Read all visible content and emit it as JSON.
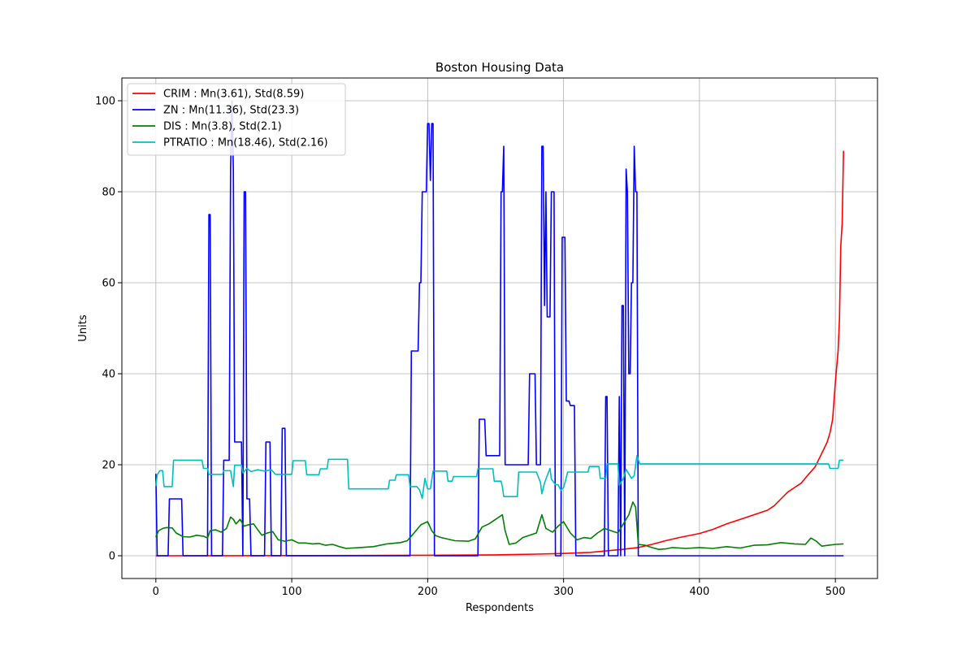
{
  "chart_data": {
    "type": "line",
    "title": "Boston Housing Data",
    "xlabel": "Respondents",
    "ylabel": "Units",
    "xlim": [
      -25,
      531
    ],
    "ylim": [
      -5,
      105
    ],
    "xticks": [
      0,
      100,
      200,
      300,
      400,
      500
    ],
    "yticks": [
      0,
      20,
      40,
      60,
      80,
      100
    ],
    "grid": true,
    "legend_position": "upper-left",
    "series": [
      {
        "name": "CRIM : Mn(3.61), Std(8.59)",
        "color": "#ff0000",
        "points": [
          [
            0,
            0.006
          ],
          [
            50,
            0.02
          ],
          [
            100,
            0.03
          ],
          [
            150,
            0.06
          ],
          [
            200,
            0.1
          ],
          [
            250,
            0.2
          ],
          [
            280,
            0.35
          ],
          [
            300,
            0.5
          ],
          [
            320,
            0.75
          ],
          [
            340,
            1.3
          ],
          [
            355,
            1.8
          ],
          [
            365,
            2.5
          ],
          [
            375,
            3.3
          ],
          [
            385,
            4.0
          ],
          [
            400,
            4.9
          ],
          [
            410,
            5.8
          ],
          [
            420,
            7.0
          ],
          [
            430,
            8.0
          ],
          [
            440,
            9.0
          ],
          [
            450,
            10.0
          ],
          [
            455,
            11.0
          ],
          [
            460,
            12.5
          ],
          [
            465,
            14.0
          ],
          [
            470,
            15.0
          ],
          [
            475,
            16.0
          ],
          [
            480,
            17.8
          ],
          [
            485,
            19.5
          ],
          [
            490,
            22.5
          ],
          [
            494,
            25
          ],
          [
            496,
            27
          ],
          [
            498,
            30
          ],
          [
            500,
            38
          ],
          [
            502,
            45
          ],
          [
            503,
            52
          ],
          [
            504,
            68
          ],
          [
            505,
            73
          ],
          [
            506,
            89
          ]
        ]
      },
      {
        "name": "ZN : Mn(11.36), Std(23.3)",
        "color": "#0000ff",
        "points": [
          [
            0,
            18
          ],
          [
            1,
            0
          ],
          [
            9,
            0
          ],
          [
            10,
            12.5
          ],
          [
            19,
            12.5
          ],
          [
            20,
            0
          ],
          [
            38,
            0
          ],
          [
            39,
            75
          ],
          [
            40,
            75
          ],
          [
            41,
            0
          ],
          [
            49,
            0
          ],
          [
            50,
            21
          ],
          [
            54,
            21
          ],
          [
            55,
            85
          ],
          [
            56,
            100
          ],
          [
            57,
            85
          ],
          [
            58,
            25
          ],
          [
            62,
            25
          ],
          [
            63,
            25
          ],
          [
            64,
            0
          ],
          [
            65,
            80
          ],
          [
            66,
            80
          ],
          [
            67,
            12.5
          ],
          [
            69,
            12.5
          ],
          [
            70,
            0
          ],
          [
            80,
            0
          ],
          [
            81,
            25
          ],
          [
            84,
            25
          ],
          [
            85,
            0
          ],
          [
            92,
            0
          ],
          [
            93,
            28
          ],
          [
            95,
            28
          ],
          [
            96,
            0
          ],
          [
            187,
            0
          ],
          [
            188,
            45
          ],
          [
            193,
            45
          ],
          [
            194,
            60
          ],
          [
            195,
            60
          ],
          [
            196,
            80
          ],
          [
            199,
            80
          ],
          [
            200,
            95
          ],
          [
            201,
            95
          ],
          [
            202,
            82.5
          ],
          [
            203,
            95
          ],
          [
            204,
            95
          ],
          [
            205,
            0
          ],
          [
            237,
            0
          ],
          [
            238,
            30
          ],
          [
            242,
            30
          ],
          [
            243,
            22
          ],
          [
            253,
            22
          ],
          [
            254,
            80
          ],
          [
            255,
            80
          ],
          [
            256,
            90
          ],
          [
            257,
            20
          ],
          [
            274,
            20
          ],
          [
            275,
            40
          ],
          [
            279,
            40
          ],
          [
            280,
            20
          ],
          [
            283,
            20
          ],
          [
            284,
            90
          ],
          [
            285,
            90
          ],
          [
            286,
            55
          ],
          [
            287,
            80
          ],
          [
            288,
            52.5
          ],
          [
            290,
            52.5
          ],
          [
            291,
            80
          ],
          [
            293,
            80
          ],
          [
            294,
            0
          ],
          [
            298,
            0
          ],
          [
            299,
            70
          ],
          [
            301,
            70
          ],
          [
            302,
            34
          ],
          [
            304,
            34
          ],
          [
            305,
            33
          ],
          [
            308,
            33
          ],
          [
            309,
            0
          ],
          [
            330,
            0
          ],
          [
            331,
            35
          ],
          [
            332,
            35
          ],
          [
            333,
            0
          ],
          [
            340,
            0
          ],
          [
            341,
            35
          ],
          [
            342,
            0
          ],
          [
            343,
            55
          ],
          [
            344,
            55
          ],
          [
            345,
            0
          ],
          [
            346,
            85
          ],
          [
            347,
            80
          ],
          [
            348,
            40
          ],
          [
            349,
            40
          ],
          [
            350,
            60
          ],
          [
            351,
            60
          ],
          [
            352,
            90
          ],
          [
            353,
            80
          ],
          [
            354,
            80
          ],
          [
            355,
            0
          ],
          [
            506,
            0
          ]
        ]
      },
      {
        "name": "DIS : Mn(3.8), Std(2.1)",
        "color": "#008000",
        "points": [
          [
            0,
            4.1
          ],
          [
            2,
            5.5
          ],
          [
            5,
            6.0
          ],
          [
            8,
            6.2
          ],
          [
            12,
            6.1
          ],
          [
            15,
            5.0
          ],
          [
            20,
            4.2
          ],
          [
            25,
            4.1
          ],
          [
            30,
            4.5
          ],
          [
            35,
            4.3
          ],
          [
            38,
            3.9
          ],
          [
            40,
            5.5
          ],
          [
            44,
            5.7
          ],
          [
            48,
            5.2
          ],
          [
            52,
            6.0
          ],
          [
            55,
            8.5
          ],
          [
            57,
            8.0
          ],
          [
            59,
            7.0
          ],
          [
            62,
            8.0
          ],
          [
            65,
            6.5
          ],
          [
            68,
            6.8
          ],
          [
            72,
            7.0
          ],
          [
            75,
            5.7
          ],
          [
            78,
            4.5
          ],
          [
            82,
            5.0
          ],
          [
            86,
            5.3
          ],
          [
            90,
            3.5
          ],
          [
            95,
            3.2
          ],
          [
            100,
            3.5
          ],
          [
            105,
            2.8
          ],
          [
            110,
            2.8
          ],
          [
            115,
            2.6
          ],
          [
            120,
            2.7
          ],
          [
            125,
            2.3
          ],
          [
            130,
            2.5
          ],
          [
            135,
            2.0
          ],
          [
            140,
            1.6
          ],
          [
            150,
            1.8
          ],
          [
            160,
            2.0
          ],
          [
            170,
            2.6
          ],
          [
            180,
            2.9
          ],
          [
            185,
            3.3
          ],
          [
            190,
            5.0
          ],
          [
            195,
            6.8
          ],
          [
            200,
            7.5
          ],
          [
            203,
            5.5
          ],
          [
            206,
            4.4
          ],
          [
            210,
            4.0
          ],
          [
            220,
            3.3
          ],
          [
            230,
            3.2
          ],
          [
            235,
            3.7
          ],
          [
            240,
            6.3
          ],
          [
            245,
            7.0
          ],
          [
            250,
            8.0
          ],
          [
            255,
            9.0
          ],
          [
            257,
            5.5
          ],
          [
            260,
            2.5
          ],
          [
            265,
            2.8
          ],
          [
            270,
            4.0
          ],
          [
            275,
            4.5
          ],
          [
            280,
            5.0
          ],
          [
            284,
            9.0
          ],
          [
            287,
            6.0
          ],
          [
            292,
            5.2
          ],
          [
            296,
            6.5
          ],
          [
            300,
            7.5
          ],
          [
            305,
            5.0
          ],
          [
            310,
            3.5
          ],
          [
            315,
            4.0
          ],
          [
            320,
            3.8
          ],
          [
            325,
            5.0
          ],
          [
            330,
            6.0
          ],
          [
            335,
            5.5
          ],
          [
            340,
            5.0
          ],
          [
            344,
            7.0
          ],
          [
            348,
            9.0
          ],
          [
            351,
            11.8
          ],
          [
            353,
            10.7
          ],
          [
            355,
            2.5
          ],
          [
            360,
            2.3
          ],
          [
            365,
            1.8
          ],
          [
            370,
            1.4
          ],
          [
            375,
            1.5
          ],
          [
            380,
            1.8
          ],
          [
            390,
            1.6
          ],
          [
            400,
            1.8
          ],
          [
            410,
            1.6
          ],
          [
            420,
            2.0
          ],
          [
            430,
            1.7
          ],
          [
            440,
            2.3
          ],
          [
            450,
            2.4
          ],
          [
            460,
            2.9
          ],
          [
            470,
            2.6
          ],
          [
            478,
            2.5
          ],
          [
            482,
            3.9
          ],
          [
            486,
            3.2
          ],
          [
            490,
            2.1
          ],
          [
            495,
            2.3
          ],
          [
            500,
            2.5
          ],
          [
            506,
            2.6
          ]
        ]
      },
      {
        "name": "PTRATIO : Mn(18.46), Std(2.16)",
        "color": "#00bfbf",
        "points": [
          [
            0,
            15.3
          ],
          [
            1,
            17.8
          ],
          [
            3,
            18.7
          ],
          [
            5,
            18.7
          ],
          [
            6,
            15.2
          ],
          [
            12,
            15.2
          ],
          [
            13,
            21
          ],
          [
            34,
            21
          ],
          [
            35,
            19.2
          ],
          [
            38,
            19.2
          ],
          [
            39,
            17.9
          ],
          [
            49,
            17.9
          ],
          [
            50,
            18.7
          ],
          [
            55,
            18.7
          ],
          [
            57,
            15.2
          ],
          [
            58,
            19.9
          ],
          [
            63,
            19.9
          ],
          [
            64,
            18.2
          ],
          [
            67,
            19.2
          ],
          [
            70,
            18.5
          ],
          [
            75,
            18.9
          ],
          [
            80,
            18.6
          ],
          [
            85,
            18.9
          ],
          [
            88,
            17.9
          ],
          [
            100,
            17.9
          ],
          [
            101,
            20.9
          ],
          [
            110,
            20.9
          ],
          [
            111,
            17.8
          ],
          [
            120,
            17.8
          ],
          [
            121,
            19.1
          ],
          [
            126,
            19.1
          ],
          [
            127,
            21.2
          ],
          [
            141,
            21.2
          ],
          [
            142,
            14.7
          ],
          [
            171,
            14.7
          ],
          [
            172,
            16.6
          ],
          [
            176,
            16.6
          ],
          [
            177,
            17.8
          ],
          [
            186,
            17.8
          ],
          [
            187,
            15.2
          ],
          [
            192,
            15.2
          ],
          [
            194,
            14.5
          ],
          [
            196,
            12.6
          ],
          [
            198,
            17.0
          ],
          [
            200,
            14.7
          ],
          [
            202,
            14.7
          ],
          [
            204,
            18.6
          ],
          [
            214,
            18.6
          ],
          [
            215,
            16.4
          ],
          [
            218,
            16.4
          ],
          [
            219,
            17.4
          ],
          [
            236,
            17.4
          ],
          [
            237,
            19.1
          ],
          [
            248,
            19.1
          ],
          [
            249,
            16.4
          ],
          [
            254,
            16.4
          ],
          [
            255,
            15.2
          ],
          [
            256,
            13.0
          ],
          [
            266,
            13.0
          ],
          [
            267,
            18.4
          ],
          [
            280,
            18.4
          ],
          [
            283,
            16.1
          ],
          [
            284,
            13.6
          ],
          [
            286,
            16.0
          ],
          [
            288,
            17.6
          ],
          [
            290,
            19.2
          ],
          [
            291,
            16.9
          ],
          [
            294,
            15.6
          ],
          [
            296,
            15.6
          ],
          [
            298,
            14.4
          ],
          [
            300,
            15.0
          ],
          [
            301,
            16.0
          ],
          [
            303,
            18.4
          ],
          [
            318,
            18.4
          ],
          [
            319,
            19.6
          ],
          [
            326,
            19.6
          ],
          [
            327,
            17.0
          ],
          [
            331,
            17.0
          ],
          [
            332,
            20.2
          ],
          [
            340,
            20.2
          ],
          [
            341,
            15.5
          ],
          [
            344,
            17.0
          ],
          [
            346,
            19.0
          ],
          [
            350,
            17.0
          ],
          [
            352,
            17.6
          ],
          [
            354,
            22.0
          ],
          [
            356,
            20.2
          ],
          [
            495,
            20.2
          ],
          [
            496,
            19.2
          ],
          [
            502,
            19.2
          ],
          [
            503,
            21
          ],
          [
            506,
            21
          ]
        ]
      }
    ]
  }
}
